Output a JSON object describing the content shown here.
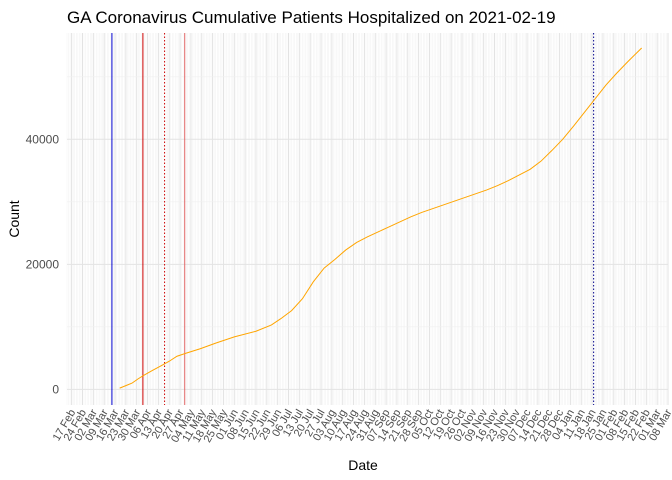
{
  "chart_data": {
    "type": "line",
    "title": "GA Coronavirus Cumulative Patients Hospitalized on 2021-02-19",
    "xlabel": "Date",
    "ylabel": "Count",
    "xlim": [
      "2020-02-14",
      "2021-03-08"
    ],
    "ylim": [
      -2500,
      57000
    ],
    "y_ticks": [
      0,
      20000,
      40000
    ],
    "grid": true,
    "x_tick_labels": [
      {
        "date": "2020-02-17",
        "label": "17 Feb"
      },
      {
        "date": "2020-02-24",
        "label": "24 Feb"
      },
      {
        "date": "2020-03-02",
        "label": "02 Mar"
      },
      {
        "date": "2020-03-09",
        "label": "09 Mar"
      },
      {
        "date": "2020-03-16",
        "label": "16 Mar"
      },
      {
        "date": "2020-03-23",
        "label": "23 Mar"
      },
      {
        "date": "2020-03-30",
        "label": "30 Mar"
      },
      {
        "date": "2020-04-06",
        "label": "06 Apr"
      },
      {
        "date": "2020-04-13",
        "label": "13 Apr"
      },
      {
        "date": "2020-04-20",
        "label": "20 Apr"
      },
      {
        "date": "2020-04-27",
        "label": "27 Apr"
      },
      {
        "date": "2020-05-04",
        "label": "04 May"
      },
      {
        "date": "2020-05-11",
        "label": "11 May"
      },
      {
        "date": "2020-05-18",
        "label": "18 May"
      },
      {
        "date": "2020-05-25",
        "label": "25 May"
      },
      {
        "date": "2020-06-01",
        "label": "01 Jun"
      },
      {
        "date": "2020-06-08",
        "label": "08 Jun"
      },
      {
        "date": "2020-06-15",
        "label": "15 Jun"
      },
      {
        "date": "2020-06-22",
        "label": "22 Jun"
      },
      {
        "date": "2020-06-29",
        "label": "29 Jun"
      },
      {
        "date": "2020-07-06",
        "label": "06 Jul"
      },
      {
        "date": "2020-07-13",
        "label": "13 Jul"
      },
      {
        "date": "2020-07-20",
        "label": "20 Jul"
      },
      {
        "date": "2020-07-27",
        "label": "27 Jul"
      },
      {
        "date": "2020-08-03",
        "label": "03 Aug"
      },
      {
        "date": "2020-08-10",
        "label": "10 Aug"
      },
      {
        "date": "2020-08-17",
        "label": "17 Aug"
      },
      {
        "date": "2020-08-24",
        "label": "24 Aug"
      },
      {
        "date": "2020-08-31",
        "label": "31 Aug"
      },
      {
        "date": "2020-09-07",
        "label": "07 Sep"
      },
      {
        "date": "2020-09-14",
        "label": "14 Sep"
      },
      {
        "date": "2020-09-21",
        "label": "21 Sep"
      },
      {
        "date": "2020-09-28",
        "label": "28 Sep"
      },
      {
        "date": "2020-10-05",
        "label": "05 Oct"
      },
      {
        "date": "2020-10-12",
        "label": "12 Oct"
      },
      {
        "date": "2020-10-19",
        "label": "19 Oct"
      },
      {
        "date": "2020-10-26",
        "label": "26 Oct"
      },
      {
        "date": "2020-11-02",
        "label": "02 Nov"
      },
      {
        "date": "2020-11-09",
        "label": "09 Nov"
      },
      {
        "date": "2020-11-16",
        "label": "16 Nov"
      },
      {
        "date": "2020-11-23",
        "label": "23 Nov"
      },
      {
        "date": "2020-11-30",
        "label": "30 Nov"
      },
      {
        "date": "2020-12-07",
        "label": "07 Dec"
      },
      {
        "date": "2020-12-14",
        "label": "14 Dec"
      },
      {
        "date": "2020-12-21",
        "label": "21 Dec"
      },
      {
        "date": "2020-12-28",
        "label": "28 Dec"
      },
      {
        "date": "2021-01-04",
        "label": "04 Jan"
      },
      {
        "date": "2021-01-11",
        "label": "11 Jan"
      },
      {
        "date": "2021-01-18",
        "label": "18 Jan"
      },
      {
        "date": "2021-01-25",
        "label": "25 Jan"
      },
      {
        "date": "2021-02-01",
        "label": "01 Feb"
      },
      {
        "date": "2021-02-08",
        "label": "08 Feb"
      },
      {
        "date": "2021-02-15",
        "label": "15 Feb"
      },
      {
        "date": "2021-02-22",
        "label": "22 Feb"
      },
      {
        "date": "2021-03-01",
        "label": "01 Mar"
      },
      {
        "date": "2021-03-08",
        "label": "08 Mar"
      }
    ],
    "series": [
      {
        "color": "#FFA500",
        "points": [
          [
            "2020-03-19",
            200
          ],
          [
            "2020-03-24",
            700
          ],
          [
            "2020-03-27",
            1000
          ],
          [
            "2020-03-31",
            1700
          ],
          [
            "2020-04-04",
            2300
          ],
          [
            "2020-04-09",
            3000
          ],
          [
            "2020-04-15",
            3800
          ],
          [
            "2020-04-20",
            4500
          ],
          [
            "2020-04-25",
            5300
          ],
          [
            "2020-05-01",
            5800
          ],
          [
            "2020-05-10",
            6500
          ],
          [
            "2020-05-20",
            7400
          ],
          [
            "2020-06-01",
            8400
          ],
          [
            "2020-06-15",
            9300
          ],
          [
            "2020-06-25",
            10300
          ],
          [
            "2020-07-01",
            11300
          ],
          [
            "2020-07-08",
            12600
          ],
          [
            "2020-07-15",
            14500
          ],
          [
            "2020-07-22",
            17200
          ],
          [
            "2020-07-29",
            19400
          ],
          [
            "2020-08-05",
            20800
          ],
          [
            "2020-08-12",
            22300
          ],
          [
            "2020-08-19",
            23500
          ],
          [
            "2020-08-26",
            24400
          ],
          [
            "2020-09-02",
            25200
          ],
          [
            "2020-09-09",
            26000
          ],
          [
            "2020-09-16",
            26800
          ],
          [
            "2020-09-23",
            27600
          ],
          [
            "2020-09-30",
            28300
          ],
          [
            "2020-10-07",
            28900
          ],
          [
            "2020-10-14",
            29500
          ],
          [
            "2020-10-21",
            30100
          ],
          [
            "2020-10-28",
            30700
          ],
          [
            "2020-11-04",
            31300
          ],
          [
            "2020-11-11",
            31900
          ],
          [
            "2020-11-18",
            32600
          ],
          [
            "2020-11-25",
            33400
          ],
          [
            "2020-12-02",
            34300
          ],
          [
            "2020-12-09",
            35200
          ],
          [
            "2020-12-16",
            36500
          ],
          [
            "2020-12-23",
            38200
          ],
          [
            "2020-12-30",
            40000
          ],
          [
            "2021-01-06",
            42100
          ],
          [
            "2021-01-13",
            44300
          ],
          [
            "2021-01-20",
            46500
          ],
          [
            "2021-01-27",
            48700
          ],
          [
            "2021-02-03",
            50600
          ],
          [
            "2021-02-10",
            52400
          ],
          [
            "2021-02-19",
            54600
          ]
        ]
      }
    ],
    "vlines": [
      {
        "date": "2020-03-14",
        "color": "#0000CD",
        "style": "solid"
      },
      {
        "date": "2020-04-03",
        "color": "#CC0000",
        "style": "solid"
      },
      {
        "date": "2020-04-30",
        "color": "#E06666",
        "style": "solid"
      },
      {
        "date": "2020-04-17",
        "color": "#CC0000",
        "style": "dotted"
      },
      {
        "date": "2021-01-19",
        "color": "#00008B",
        "style": "dotted"
      }
    ]
  }
}
